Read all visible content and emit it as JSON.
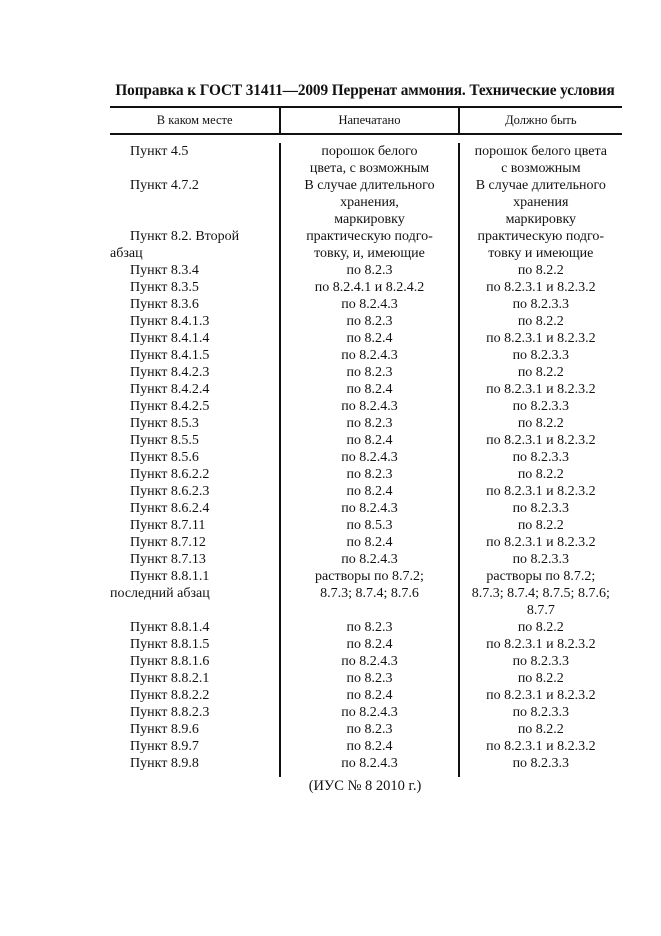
{
  "title": "Поправка к ГОСТ 31411—2009 Перренат аммония. Технические условия",
  "table": {
    "headers": [
      "В каком месте",
      "Напечатано",
      "Должно быть"
    ],
    "rows": [
      {
        "place": "Пункт 4.5",
        "printed": "порошок белого\nцвета, с возможным",
        "should": "порошок белого цвета\nс возможным"
      },
      {
        "place": "Пункт 4.7.2",
        "printed": "В случае длительного\nхранения,\nмаркировку",
        "should": "В случае длительного\nхранения\nмаркировку"
      },
      {
        "place": "Пункт 8.2. Второй\nабзац",
        "printed": "практическую подго-\nтовку, и, имеющие",
        "should": "практическую подго-\nтовку и имеющие"
      },
      {
        "place": "Пункт 8.3.4",
        "printed": "по 8.2.3",
        "should": "по 8.2.2"
      },
      {
        "place": "Пункт 8.3.5",
        "printed": "по 8.2.4.1 и 8.2.4.2",
        "should": "по 8.2.3.1 и 8.2.3.2"
      },
      {
        "place": "Пункт 8.3.6",
        "printed": "по 8.2.4.3",
        "should": "по 8.2.3.3"
      },
      {
        "place": "Пункт 8.4.1.3",
        "printed": "по 8.2.3",
        "should": "по 8.2.2"
      },
      {
        "place": "Пункт 8.4.1.4",
        "printed": "по 8.2.4",
        "should": "по 8.2.3.1 и 8.2.3.2"
      },
      {
        "place": "Пункт 8.4.1.5",
        "printed": "по 8.2.4.3",
        "should": "по 8.2.3.3"
      },
      {
        "place": "Пункт 8.4.2.3",
        "printed": "по 8.2.3",
        "should": "по 8.2.2"
      },
      {
        "place": "Пункт 8.4.2.4",
        "printed": "по 8.2.4",
        "should": "по 8.2.3.1 и 8.2.3.2"
      },
      {
        "place": "Пункт 8.4.2.5",
        "printed": "по 8.2.4.3",
        "should": "по 8.2.3.3"
      },
      {
        "place": "Пункт 8.5.3",
        "printed": "по 8.2.3",
        "should": "по 8.2.2"
      },
      {
        "place": "Пункт 8.5.5",
        "printed": "по 8.2.4",
        "should": "по 8.2.3.1 и 8.2.3.2"
      },
      {
        "place": "Пункт 8.5.6",
        "printed": "по 8.2.4.3",
        "should": "по 8.2.3.3"
      },
      {
        "place": "Пункт 8.6.2.2",
        "printed": "по 8.2.3",
        "should": "по 8.2.2"
      },
      {
        "place": "Пункт 8.6.2.3",
        "printed": "по 8.2.4",
        "should": "по 8.2.3.1 и 8.2.3.2"
      },
      {
        "place": "Пункт 8.6.2.4",
        "printed": "по 8.2.4.3",
        "should": "по 8.2.3.3"
      },
      {
        "place": "Пункт 8.7.11",
        "printed": "по 8.5.3",
        "should": "по 8.2.2"
      },
      {
        "place": "Пункт 8.7.12",
        "printed": "по 8.2.4",
        "should": "по 8.2.3.1 и 8.2.3.2"
      },
      {
        "place": "Пункт 8.7.13",
        "printed": "по 8.2.4.3",
        "should": "по 8.2.3.3"
      },
      {
        "place": "Пункт 8.8.1.1\nпоследний абзац",
        "printed": "растворы по 8.7.2;\n8.7.3; 8.7.4; 8.7.6",
        "should": "растворы по 8.7.2;\n8.7.3; 8.7.4; 8.7.5; 8.7.6;\n8.7.7"
      },
      {
        "place": "Пункт 8.8.1.4",
        "printed": "по 8.2.3",
        "should": "по 8.2.2"
      },
      {
        "place": "Пункт 8.8.1.5",
        "printed": "по 8.2.4",
        "should": "по 8.2.3.1 и 8.2.3.2"
      },
      {
        "place": "Пункт 8.8.1.6",
        "printed": "по 8.2.4.3",
        "should": "по 8.2.3.3"
      },
      {
        "place": "Пункт 8.8.2.1",
        "printed": "по 8.2.3",
        "should": "по 8.2.2"
      },
      {
        "place": "Пункт 8.8.2.2",
        "printed": "по 8.2.4",
        "should": "по 8.2.3.1 и 8.2.3.2"
      },
      {
        "place": "Пункт 8.8.2.3",
        "printed": "по 8.2.4.3",
        "should": "по 8.2.3.3"
      },
      {
        "place": "Пункт 8.9.6",
        "printed": "по 8.2.3",
        "should": "по 8.2.2"
      },
      {
        "place": "Пункт 8.9.7",
        "printed": "по 8.2.4",
        "should": "по 8.2.3.1 и 8.2.3.2"
      },
      {
        "place": "Пункт 8.9.8",
        "printed": "по 8.2.4.3",
        "should": "по 8.2.3.3"
      }
    ]
  },
  "footer": "(ИУС № 8  2010 г.)"
}
